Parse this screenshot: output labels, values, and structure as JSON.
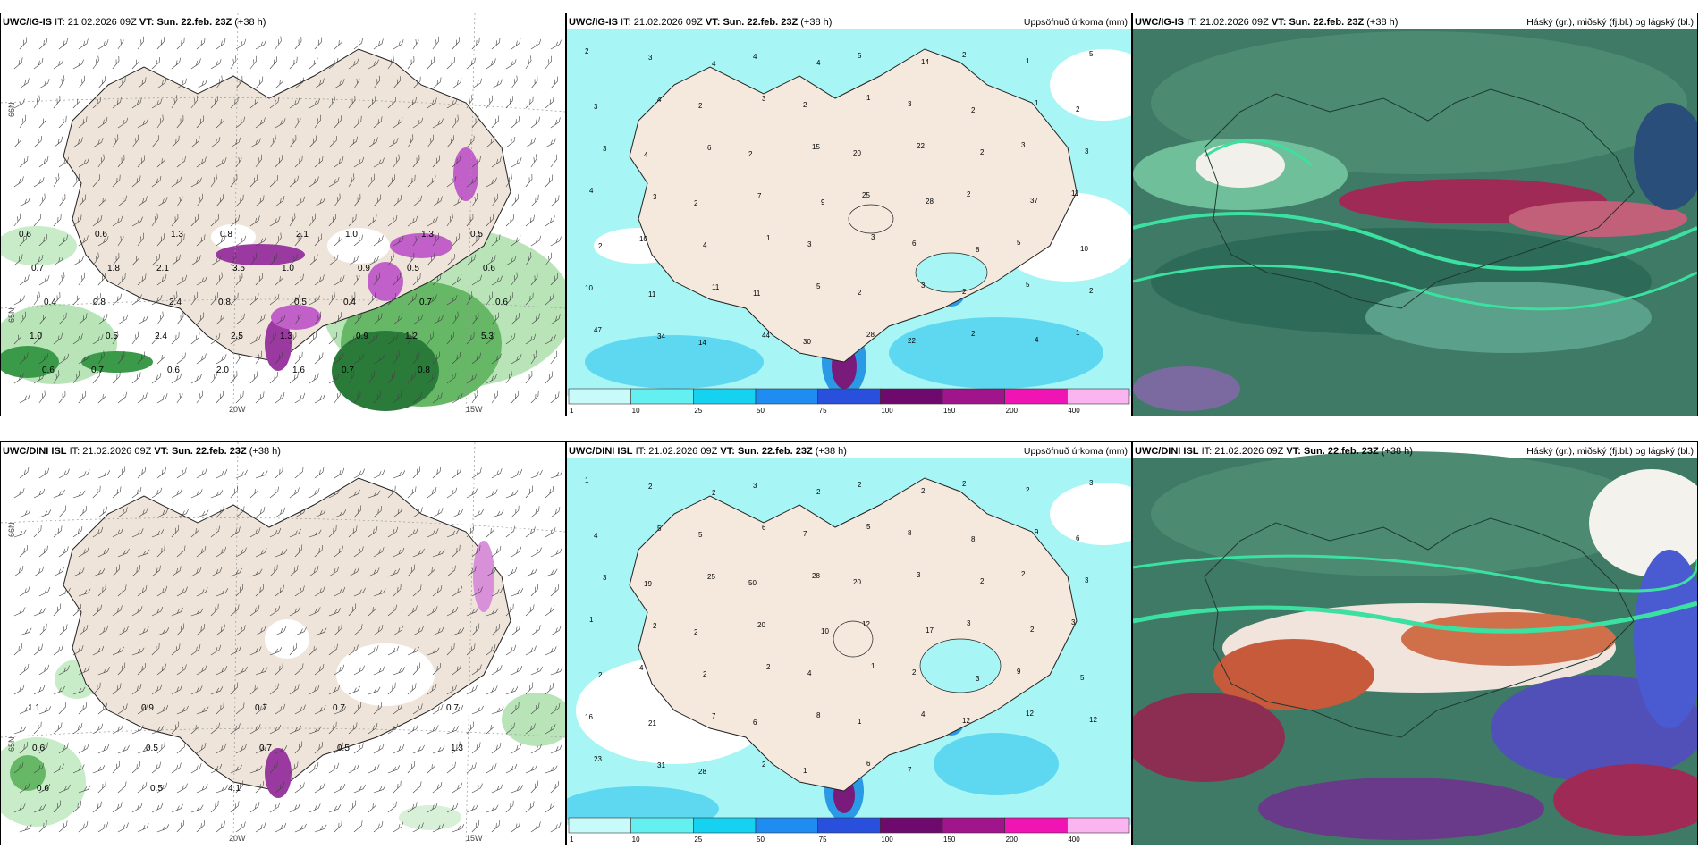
{
  "rows": [
    {
      "model": "UWC/IG-IS",
      "it_label": "IT:",
      "it_value": "21.02.2026 09Z",
      "vt_label": "VT:",
      "vt_value": "Sun. 22.feb. 23Z",
      "lead": "(+38 h)",
      "panels": {
        "precip_title": "Uppsöfnuð úrkoma (mm)",
        "cloud_title": "Háský (gr.), miðský (fj.bl.) og lágský (bl.)"
      }
    },
    {
      "model": "UWC/DINI ISL",
      "it_label": "IT:",
      "it_value": "21.02.2026 09Z",
      "vt_label": "VT:",
      "vt_value": "Sun. 22.feb. 23Z",
      "lead": "(+38 h)",
      "panels": {
        "precip_title": "Uppsöfnuð úrkoma (mm)",
        "cloud_title": "Háský (gr.), miðský (fj.bl.) og lágský (bl.)"
      }
    }
  ],
  "axis_labels": {
    "lat66": "66N",
    "lat65": "65N",
    "lon20": "20W",
    "lon15": "15W"
  },
  "colorbar": {
    "ticks": [
      "1",
      "10",
      "25",
      "50",
      "75",
      "100",
      "150",
      "200",
      "400"
    ],
    "colors": [
      "#c8fafa",
      "#64f0f0",
      "#14d2f0",
      "#1e8cf0",
      "#2850dc",
      "#6e0a6e",
      "#a0148c",
      "#f014b4",
      "#fab4f0"
    ]
  },
  "wind_panel_values": {
    "top": [
      "0.6",
      "0.6",
      "1.3",
      "0.8",
      "2.1",
      "1.0",
      "1.3",
      "0.5",
      "0.7",
      "1.8",
      "2.1",
      "3.5",
      "1.0",
      "0.9",
      "0.5",
      "0.6",
      "0.4",
      "0.8",
      "2.4",
      "0.8",
      "0.5",
      "0.4",
      "0.7",
      "0.6",
      "1.0",
      "0.5",
      "2.4",
      "2.5",
      "1.3",
      "0.9",
      "1.2",
      "5.3",
      "0.6",
      "0.7",
      "0.6",
      "2.0",
      "1.6",
      "0.7",
      "0.8"
    ],
    "bottom": [
      "1.1",
      "0.9",
      "0.7",
      "0.7",
      "0.7",
      "0.6",
      "0.5",
      "0.7",
      "0.5",
      "1.3",
      "0.6",
      "0.5",
      "4.1"
    ]
  },
  "precip_values": {
    "top": [
      "2",
      "3",
      "4",
      "4",
      "4",
      "5",
      "14",
      "2",
      "1",
      "5",
      "3",
      "4",
      "2",
      "3",
      "2",
      "1",
      "3",
      "2",
      "1",
      "2",
      "3",
      "4",
      "6",
      "2",
      "15",
      "20",
      "22",
      "2",
      "3",
      "3",
      "4",
      "3",
      "2",
      "7",
      "9",
      "25",
      "28",
      "2",
      "37",
      "11",
      "2",
      "10",
      "4",
      "1",
      "3",
      "3",
      "6",
      "8",
      "5",
      "10",
      "10",
      "11",
      "11",
      "11",
      "5",
      "2",
      "3",
      "2",
      "5",
      "2",
      "47",
      "34",
      "14",
      "44",
      "30",
      "28",
      "22",
      "2",
      "4",
      "1"
    ],
    "bottom": [
      "1",
      "2",
      "2",
      "3",
      "2",
      "2",
      "2",
      "2",
      "2",
      "3",
      "4",
      "5",
      "5",
      "6",
      "7",
      "5",
      "8",
      "8",
      "9",
      "6",
      "3",
      "19",
      "25",
      "50",
      "28",
      "20",
      "3",
      "2",
      "2",
      "3",
      "1",
      "2",
      "2",
      "20",
      "10",
      "12",
      "17",
      "3",
      "2",
      "3",
      "2",
      "4",
      "2",
      "2",
      "4",
      "1",
      "2",
      "3",
      "9",
      "5",
      "16",
      "21",
      "7",
      "6",
      "8",
      "1",
      "4",
      "12",
      "12",
      "12",
      "23",
      "31",
      "28",
      "2",
      "1",
      "6",
      "7"
    ]
  }
}
